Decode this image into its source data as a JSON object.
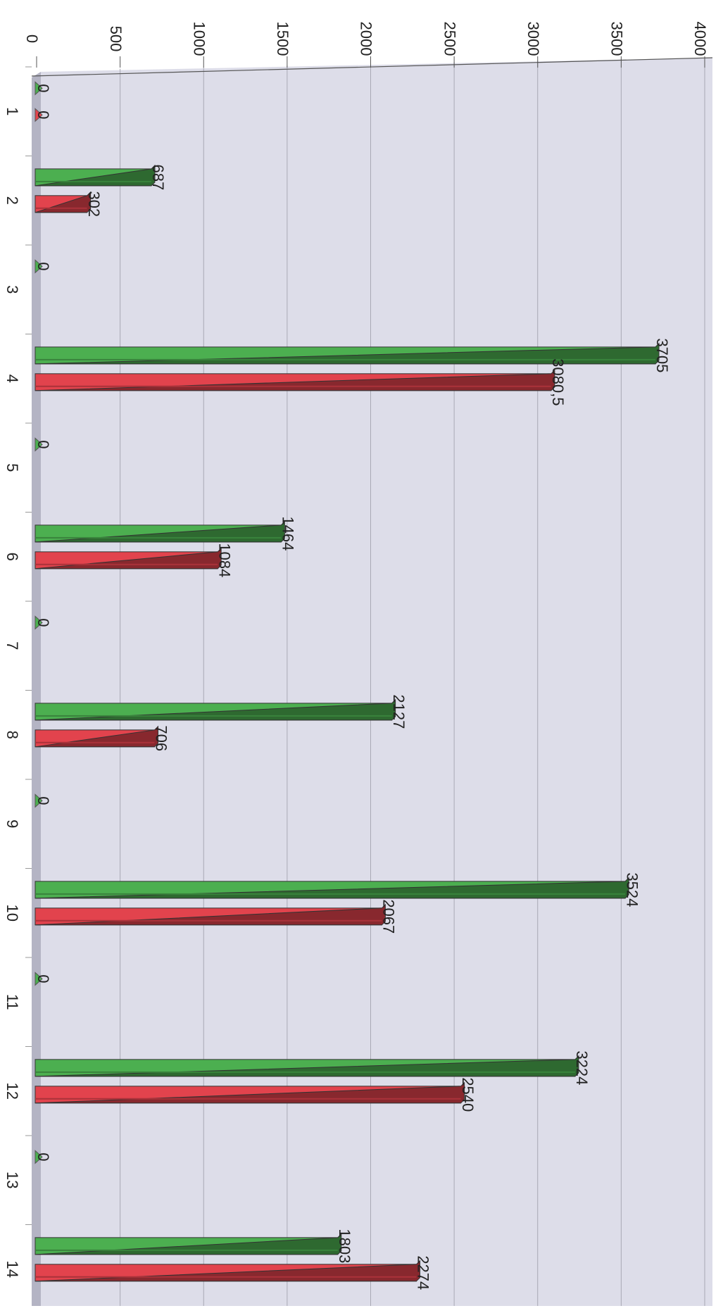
{
  "chart_data": {
    "type": "bar",
    "orientation": "horizontal",
    "rotated": true,
    "categories": [
      "1",
      "2",
      "3",
      "4",
      "5",
      "6",
      "7",
      "8",
      "9",
      "10",
      "11",
      "12",
      "13",
      "14"
    ],
    "series": [
      {
        "color": "#4caf50",
        "values": [
          0,
          687,
          0,
          3705,
          0,
          1464,
          0,
          2127,
          0,
          3524,
          0,
          3224,
          0,
          1803
        ]
      },
      {
        "color": "#e2434d",
        "values": [
          0,
          302,
          null,
          3080.5,
          null,
          1084,
          null,
          706,
          null,
          2067,
          null,
          2540,
          null,
          2274
        ]
      }
    ],
    "value_labels": [
      [
        "0",
        "687",
        "0",
        "3705",
        "0",
        "1464",
        "0",
        "2127",
        "0",
        "3524",
        "0",
        "3224",
        "0",
        "1803"
      ],
      [
        "0",
        "302",
        "",
        "3080,5",
        "",
        "1084",
        "",
        "706",
        "",
        "2067",
        "",
        "2540",
        "",
        "2274"
      ]
    ],
    "value_axis": {
      "range": [
        0,
        4000
      ],
      "ticks": [
        0,
        500,
        1000,
        1500,
        2000,
        2500,
        3000,
        3500,
        4000
      ],
      "tick_labels": [
        "0",
        "500",
        "1000",
        "1500",
        "2000",
        "2500",
        "3000",
        "3500",
        "4000"
      ]
    },
    "grid": true,
    "legend": "none",
    "colors": {
      "plot_bg": "#dddde9",
      "grid": "#a8a8b4",
      "floor": "#b4b4c4"
    }
  }
}
